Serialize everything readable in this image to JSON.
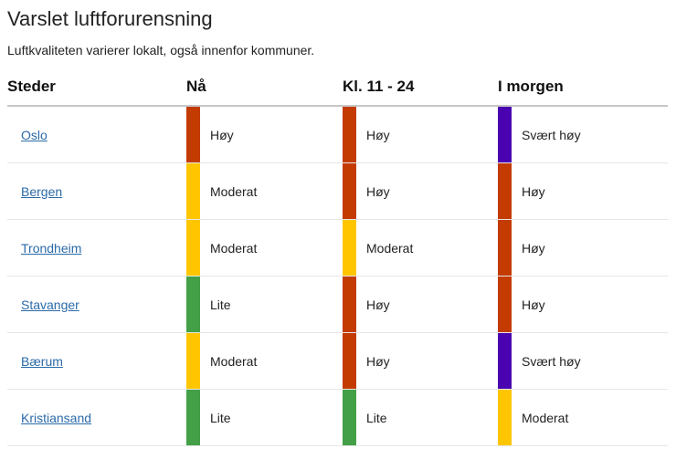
{
  "page": {
    "title": "Varslet luftforurensning",
    "subtitle": "Luftkvaliteten varierer lokalt, også innenfor kommuner."
  },
  "table": {
    "headers": [
      "Steder",
      "Nå",
      "Kl. 11 - 24",
      "I morgen"
    ],
    "level_colors": {
      "Lite": "#43a047",
      "Moderat": "#ffc600",
      "Høy": "#c43b02",
      "Svært høy": "#4a03b0"
    },
    "rows": [
      {
        "place": "Oslo",
        "now": "Høy",
        "later": "Høy",
        "tomorrow": "Svært høy"
      },
      {
        "place": "Bergen",
        "now": "Moderat",
        "later": "Høy",
        "tomorrow": "Høy"
      },
      {
        "place": "Trondheim",
        "now": "Moderat",
        "later": "Moderat",
        "tomorrow": "Høy"
      },
      {
        "place": "Stavanger",
        "now": "Lite",
        "later": "Høy",
        "tomorrow": "Høy"
      },
      {
        "place": "Bærum",
        "now": "Moderat",
        "later": "Høy",
        "tomorrow": "Svært høy"
      },
      {
        "place": "Kristiansand",
        "now": "Lite",
        "later": "Lite",
        "tomorrow": "Moderat"
      }
    ]
  }
}
